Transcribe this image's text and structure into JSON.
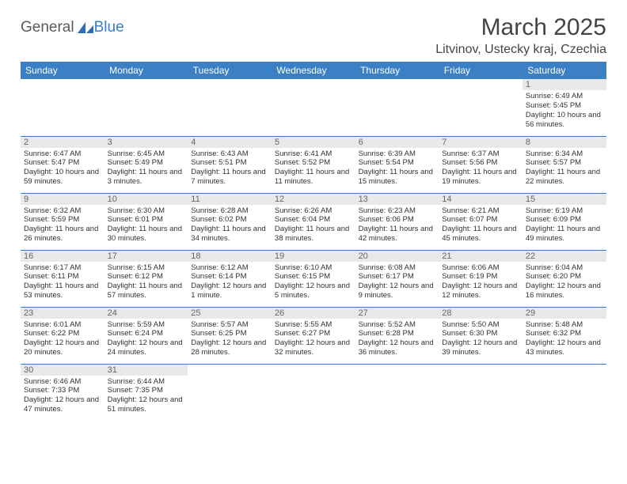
{
  "logo": {
    "part1": "General",
    "part2": "Blue"
  },
  "title": "March 2025",
  "location": "Litvinov, Ustecky kraj, Czechia",
  "colors": {
    "header_bg": "#3b7fc4",
    "header_text": "#ffffff",
    "daynum_bg": "#e9e9e9",
    "border": "#3b7fc4"
  },
  "day_headers": [
    "Sunday",
    "Monday",
    "Tuesday",
    "Wednesday",
    "Thursday",
    "Friday",
    "Saturday"
  ],
  "weeks": [
    [
      null,
      null,
      null,
      null,
      null,
      null,
      {
        "n": "1",
        "sr": "6:49 AM",
        "ss": "5:45 PM",
        "dl": "10 hours and 56 minutes."
      }
    ],
    [
      {
        "n": "2",
        "sr": "6:47 AM",
        "ss": "5:47 PM",
        "dl": "10 hours and 59 minutes."
      },
      {
        "n": "3",
        "sr": "6:45 AM",
        "ss": "5:49 PM",
        "dl": "11 hours and 3 minutes."
      },
      {
        "n": "4",
        "sr": "6:43 AM",
        "ss": "5:51 PM",
        "dl": "11 hours and 7 minutes."
      },
      {
        "n": "5",
        "sr": "6:41 AM",
        "ss": "5:52 PM",
        "dl": "11 hours and 11 minutes."
      },
      {
        "n": "6",
        "sr": "6:39 AM",
        "ss": "5:54 PM",
        "dl": "11 hours and 15 minutes."
      },
      {
        "n": "7",
        "sr": "6:37 AM",
        "ss": "5:56 PM",
        "dl": "11 hours and 19 minutes."
      },
      {
        "n": "8",
        "sr": "6:34 AM",
        "ss": "5:57 PM",
        "dl": "11 hours and 22 minutes."
      }
    ],
    [
      {
        "n": "9",
        "sr": "6:32 AM",
        "ss": "5:59 PM",
        "dl": "11 hours and 26 minutes."
      },
      {
        "n": "10",
        "sr": "6:30 AM",
        "ss": "6:01 PM",
        "dl": "11 hours and 30 minutes."
      },
      {
        "n": "11",
        "sr": "6:28 AM",
        "ss": "6:02 PM",
        "dl": "11 hours and 34 minutes."
      },
      {
        "n": "12",
        "sr": "6:26 AM",
        "ss": "6:04 PM",
        "dl": "11 hours and 38 minutes."
      },
      {
        "n": "13",
        "sr": "6:23 AM",
        "ss": "6:06 PM",
        "dl": "11 hours and 42 minutes."
      },
      {
        "n": "14",
        "sr": "6:21 AM",
        "ss": "6:07 PM",
        "dl": "11 hours and 45 minutes."
      },
      {
        "n": "15",
        "sr": "6:19 AM",
        "ss": "6:09 PM",
        "dl": "11 hours and 49 minutes."
      }
    ],
    [
      {
        "n": "16",
        "sr": "6:17 AM",
        "ss": "6:11 PM",
        "dl": "11 hours and 53 minutes."
      },
      {
        "n": "17",
        "sr": "6:15 AM",
        "ss": "6:12 PM",
        "dl": "11 hours and 57 minutes."
      },
      {
        "n": "18",
        "sr": "6:12 AM",
        "ss": "6:14 PM",
        "dl": "12 hours and 1 minute."
      },
      {
        "n": "19",
        "sr": "6:10 AM",
        "ss": "6:15 PM",
        "dl": "12 hours and 5 minutes."
      },
      {
        "n": "20",
        "sr": "6:08 AM",
        "ss": "6:17 PM",
        "dl": "12 hours and 9 minutes."
      },
      {
        "n": "21",
        "sr": "6:06 AM",
        "ss": "6:19 PM",
        "dl": "12 hours and 12 minutes."
      },
      {
        "n": "22",
        "sr": "6:04 AM",
        "ss": "6:20 PM",
        "dl": "12 hours and 16 minutes."
      }
    ],
    [
      {
        "n": "23",
        "sr": "6:01 AM",
        "ss": "6:22 PM",
        "dl": "12 hours and 20 minutes."
      },
      {
        "n": "24",
        "sr": "5:59 AM",
        "ss": "6:24 PM",
        "dl": "12 hours and 24 minutes."
      },
      {
        "n": "25",
        "sr": "5:57 AM",
        "ss": "6:25 PM",
        "dl": "12 hours and 28 minutes."
      },
      {
        "n": "26",
        "sr": "5:55 AM",
        "ss": "6:27 PM",
        "dl": "12 hours and 32 minutes."
      },
      {
        "n": "27",
        "sr": "5:52 AM",
        "ss": "6:28 PM",
        "dl": "12 hours and 36 minutes."
      },
      {
        "n": "28",
        "sr": "5:50 AM",
        "ss": "6:30 PM",
        "dl": "12 hours and 39 minutes."
      },
      {
        "n": "29",
        "sr": "5:48 AM",
        "ss": "6:32 PM",
        "dl": "12 hours and 43 minutes."
      }
    ],
    [
      {
        "n": "30",
        "sr": "6:46 AM",
        "ss": "7:33 PM",
        "dl": "12 hours and 47 minutes."
      },
      {
        "n": "31",
        "sr": "6:44 AM",
        "ss": "7:35 PM",
        "dl": "12 hours and 51 minutes."
      },
      null,
      null,
      null,
      null,
      null
    ]
  ],
  "labels": {
    "sunrise": "Sunrise:",
    "sunset": "Sunset:",
    "daylight": "Daylight:"
  }
}
